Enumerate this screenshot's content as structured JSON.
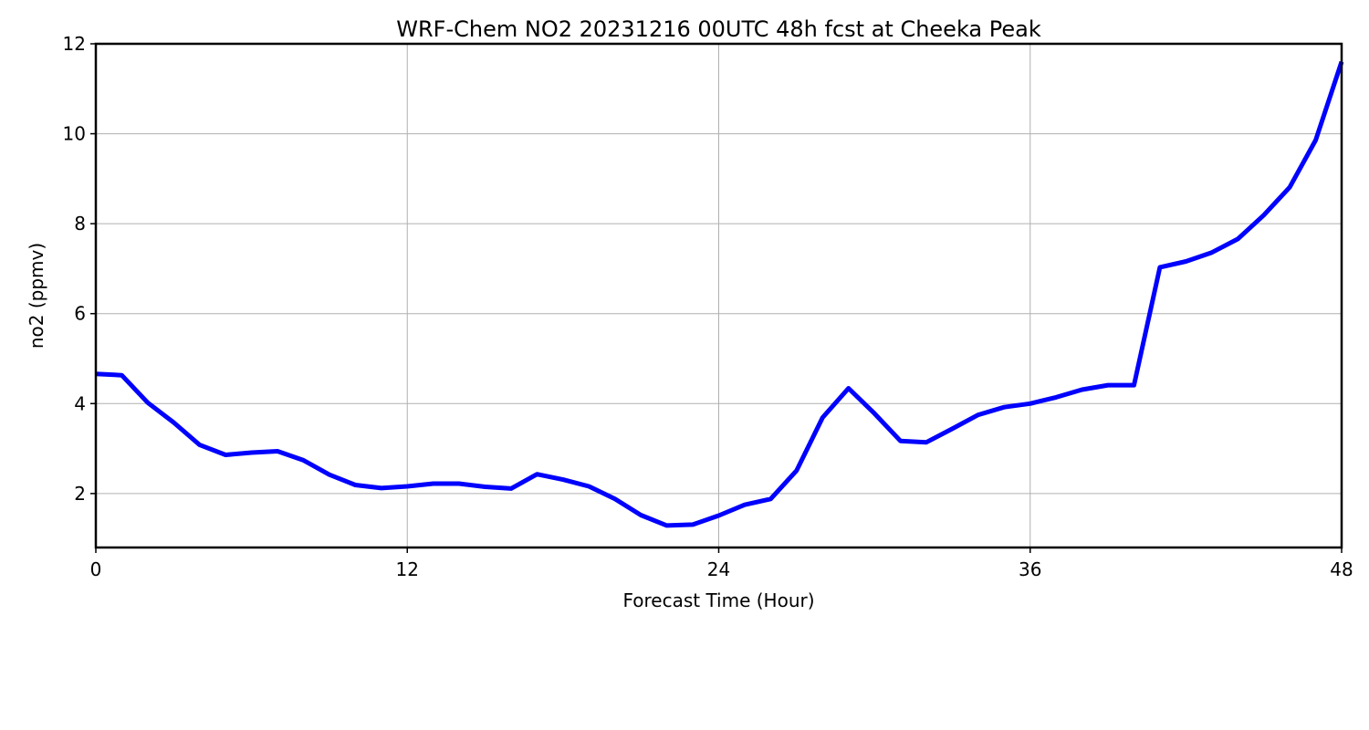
{
  "chart_data": {
    "type": "line",
    "title": "WRF-Chem NO2  20231216 00UTC 48h fcst at Cheeka Peak",
    "xlabel": "Forecast Time (Hour)",
    "ylabel": "no2  (ppmv)",
    "xlim": [
      0,
      48
    ],
    "ylim": [
      0.8,
      12
    ],
    "xticks": [
      0,
      12,
      24,
      36,
      48
    ],
    "yticks": [
      2,
      4,
      6,
      8,
      10,
      12
    ],
    "grid": true,
    "series": [
      {
        "color": "#0000ff",
        "x": [
          0,
          1,
          2,
          3,
          4,
          5,
          6,
          7,
          8,
          9,
          10,
          11,
          12,
          13,
          14,
          15,
          16,
          17,
          18,
          19,
          20,
          21,
          22,
          23,
          24,
          25,
          26,
          27,
          28,
          29,
          30,
          31,
          32,
          33,
          34,
          35,
          36,
          37,
          38,
          39,
          40,
          41,
          42,
          43,
          44,
          45,
          46,
          47,
          48
        ],
        "values": [
          4.66,
          4.63,
          4.02,
          3.58,
          3.08,
          2.86,
          2.91,
          2.94,
          2.74,
          2.42,
          2.19,
          2.12,
          2.16,
          2.22,
          2.22,
          2.15,
          2.11,
          2.43,
          2.31,
          2.16,
          1.88,
          1.52,
          1.29,
          1.31,
          1.51,
          1.75,
          1.88,
          2.51,
          3.69,
          4.34,
          3.78,
          3.17,
          3.14,
          3.44,
          3.75,
          3.92,
          4.0,
          4.14,
          4.31,
          4.41,
          4.41,
          7.03,
          7.16,
          7.36,
          7.66,
          8.19,
          8.81,
          9.86,
          11.6
        ]
      }
    ]
  }
}
